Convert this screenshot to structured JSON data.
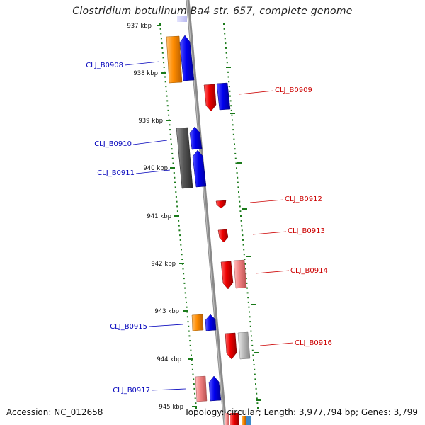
{
  "title": "Clostridium botulinum Ba4 str. 657, complete genome",
  "accession": "Accession: NC_012658",
  "summary": "Topology: circular; Length: 3,977,794 bp; Genes: 3,799",
  "colors": {
    "blue": "#0000ee",
    "red": "#ee0000",
    "orange": "#ff8c00",
    "pink": "#f08080",
    "gray": "#555555",
    "lightgray": "#bbbbbb",
    "tick": "#1a7a1a",
    "label_blue": "#0000bb",
    "label_red": "#cc0000"
  },
  "kbp_ticks": [
    "937 kbp",
    "938 kbp",
    "939 kbp",
    "940 kbp",
    "941 kbp",
    "942 kbp",
    "943 kbp",
    "944 kbp",
    "945 kbp"
  ],
  "gene_labels_left": [
    "CLJ_B0908",
    "CLJ_B0910",
    "CLJ_B0911",
    "CLJ_B0915",
    "CLJ_B0917"
  ],
  "gene_labels_right": [
    "CLJ_B0909",
    "CLJ_B0912",
    "CLJ_B0913",
    "CLJ_B0914",
    "CLJ_B0916"
  ]
}
